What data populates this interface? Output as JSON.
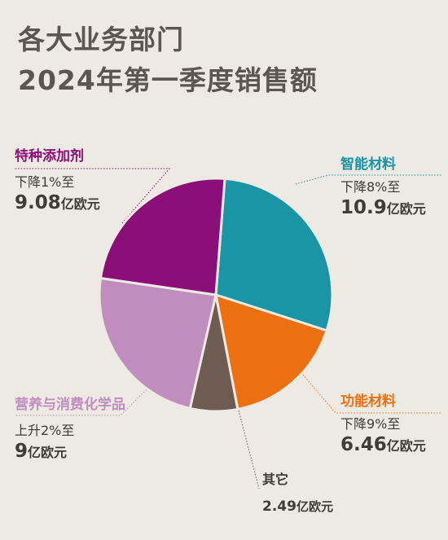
{
  "title_lines": [
    "各大业务部门",
    "2024年第一季度销售额"
  ],
  "colors": {
    "smart": "#1a95a5",
    "functional": "#ec7010",
    "other": "#6e5b52",
    "nutrition": "#c08dbf",
    "additives": "#8b0f78"
  },
  "chart_data": {
    "type": "pie",
    "title": "各大业务部门 2024年第一季度销售额",
    "unit": "亿欧元",
    "slices": [
      {
        "label": "智能材料",
        "value": 10.9,
        "change": "下降8%至",
        "value_text": "10.9",
        "unit": "亿欧元",
        "color": "#1a95a5"
      },
      {
        "label": "功能材料",
        "value": 6.46,
        "change": "下降9%至",
        "value_text": "6.46",
        "unit": "亿欧元",
        "color": "#ec7010"
      },
      {
        "label": "其它",
        "value": 2.49,
        "change": "",
        "value_text": "2.49",
        "unit": "亿欧元",
        "color": "#6e5b52"
      },
      {
        "label": "营养与消费化学品",
        "value": 9,
        "change": "上升2%至",
        "value_text": "9",
        "unit": "亿欧元",
        "color": "#c08dbf"
      },
      {
        "label": "特种添加剂",
        "value": 9.08,
        "change": "下降1%至",
        "value_text": "9.08",
        "unit": "亿欧元",
        "color": "#8b0f78"
      }
    ]
  }
}
